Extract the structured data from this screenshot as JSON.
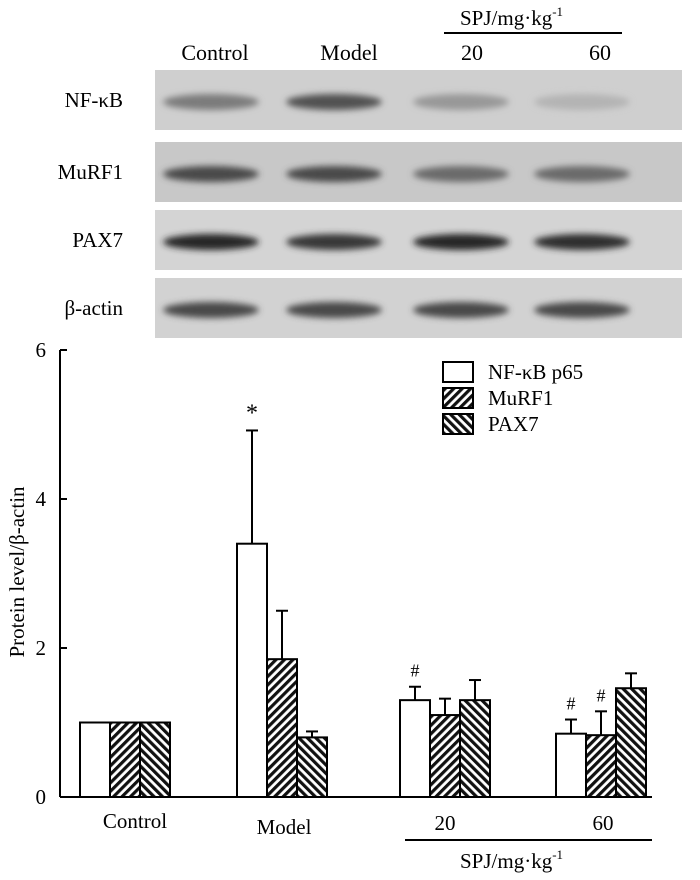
{
  "blot": {
    "group_labels": [
      "Control",
      "Model",
      "20",
      "60"
    ],
    "dose_label": "SPJ/mg·kg",
    "dose_exp": "-1",
    "rows": [
      {
        "label": "NF-κB",
        "band_darkness": [
          0.45,
          0.7,
          0.28,
          0.12
        ],
        "background": "#cfcfcf"
      },
      {
        "label": "MuRF1",
        "band_darkness": [
          0.75,
          0.75,
          0.55,
          0.55
        ],
        "background": "#c8c8c8"
      },
      {
        "label": "PAX7",
        "band_darkness": [
          0.95,
          0.85,
          0.95,
          0.9
        ],
        "background": "#d4d4d4"
      },
      {
        "label": "β-actin",
        "band_darkness": [
          0.75,
          0.75,
          0.75,
          0.75
        ],
        "background": "#d2d2d2"
      }
    ]
  },
  "chart_data": {
    "type": "bar",
    "categories": [
      "Control",
      "Model",
      "20",
      "60"
    ],
    "x_group_label": "SPJ/mg·kg",
    "x_group_label_exp": "-1",
    "ylabel": "Protein level/β-actin",
    "ylim": [
      0,
      6
    ],
    "yticks": [
      0,
      2,
      4,
      6
    ],
    "legend_position": "top-right",
    "series": [
      {
        "name": "NF-κB p65",
        "pattern": "open",
        "values": [
          1.0,
          3.4,
          1.3,
          0.85
        ],
        "errors": [
          0,
          1.52,
          0.18,
          0.19
        ],
        "annotations": [
          "",
          "*",
          "#",
          "#"
        ]
      },
      {
        "name": "MuRF1",
        "pattern": "hatch-right",
        "values": [
          1.0,
          1.85,
          1.1,
          0.83
        ],
        "errors": [
          0,
          0.65,
          0.22,
          0.32
        ],
        "annotations": [
          "",
          "",
          "",
          "#"
        ]
      },
      {
        "name": "PAX7",
        "pattern": "hatch-left",
        "values": [
          1.0,
          0.8,
          1.3,
          1.46
        ],
        "errors": [
          0,
          0.08,
          0.27,
          0.2
        ],
        "annotations": [
          "",
          "",
          "",
          ""
        ]
      }
    ]
  }
}
